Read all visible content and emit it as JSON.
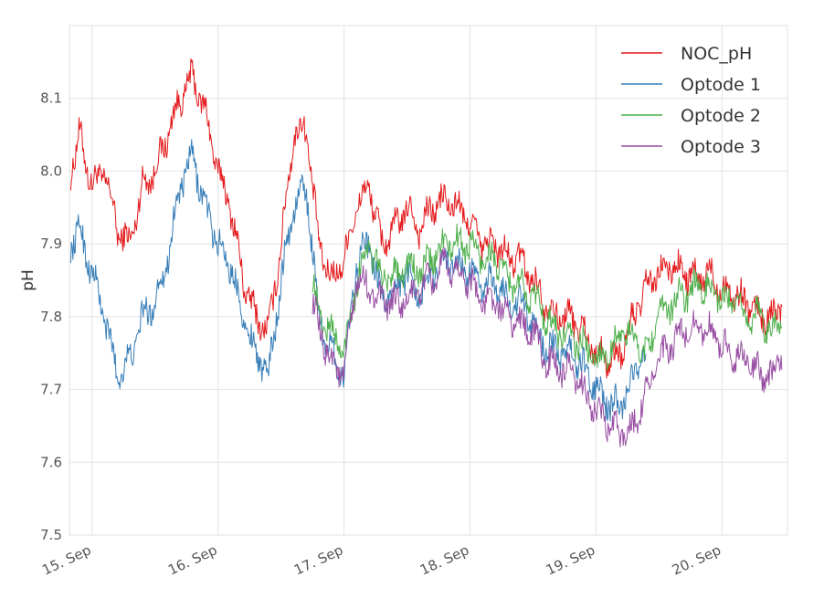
{
  "chart_data": {
    "type": "line",
    "title": "",
    "xlabel": "",
    "ylabel": "pH",
    "x_unit": "day of September",
    "xlim": [
      14.82,
      20.52
    ],
    "ylim": [
      7.5,
      8.2
    ],
    "grid": true,
    "legend_position": "top-right",
    "x_ticks": [
      {
        "value": 15,
        "label": "15. Sep"
      },
      {
        "value": 16,
        "label": "16. Sep"
      },
      {
        "value": 17,
        "label": "17. Sep"
      },
      {
        "value": 18,
        "label": "18. Sep"
      },
      {
        "value": 19,
        "label": "19. Sep"
      },
      {
        "value": 20,
        "label": "20. Sep"
      }
    ],
    "y_ticks": [
      {
        "value": 7.5,
        "label": "7.5"
      },
      {
        "value": 7.6,
        "label": "7.6"
      },
      {
        "value": 7.7,
        "label": "7.7"
      },
      {
        "value": 7.8,
        "label": "7.8"
      },
      {
        "value": 7.9,
        "label": "7.9"
      },
      {
        "value": 8.0,
        "label": "8.0"
      },
      {
        "value": 8.1,
        "label": "8.1"
      }
    ],
    "series": [
      {
        "name": "NOC_pH",
        "color": "#e41a1c",
        "x": [
          14.83,
          14.9,
          15.0,
          15.1,
          15.2,
          15.3,
          15.4,
          15.5,
          15.6,
          15.7,
          15.8,
          15.9,
          16.0,
          16.1,
          16.2,
          16.3,
          16.4,
          16.5,
          16.6,
          16.7,
          16.8,
          16.9,
          17.0,
          17.1,
          17.2,
          17.3,
          17.4,
          17.5,
          17.6,
          17.7,
          17.8,
          17.9,
          18.0,
          18.1,
          18.2,
          18.3,
          18.4,
          18.5,
          18.6,
          18.7,
          18.8,
          18.9,
          19.0,
          19.1,
          19.2,
          19.3,
          19.4,
          19.5,
          19.6,
          19.7,
          19.8,
          19.9,
          20.0,
          20.1,
          20.2,
          20.3,
          20.4,
          20.48
        ],
        "y": [
          8.0,
          8.05,
          7.98,
          8.0,
          7.92,
          7.9,
          7.98,
          8.0,
          8.05,
          8.1,
          8.13,
          8.08,
          8.0,
          7.95,
          7.85,
          7.8,
          7.78,
          7.9,
          8.05,
          8.06,
          7.9,
          7.85,
          7.88,
          7.95,
          7.98,
          7.9,
          7.92,
          7.95,
          7.92,
          7.95,
          7.96,
          7.95,
          7.93,
          7.9,
          7.9,
          7.88,
          7.88,
          7.85,
          7.82,
          7.8,
          7.8,
          7.78,
          7.75,
          7.74,
          7.75,
          7.8,
          7.84,
          7.86,
          7.87,
          7.86,
          7.85,
          7.86,
          7.84,
          7.83,
          7.82,
          7.8,
          7.8,
          7.82
        ]
      },
      {
        "name": "Optode 1",
        "color": "#377eb8",
        "x": [
          14.83,
          14.9,
          15.0,
          15.1,
          15.2,
          15.3,
          15.4,
          15.5,
          15.6,
          15.7,
          15.8,
          15.9,
          16.0,
          16.1,
          16.2,
          16.3,
          16.4,
          16.5,
          16.6,
          16.7,
          16.8,
          16.9,
          17.0,
          17.1,
          17.2,
          17.3,
          17.4,
          17.5,
          17.6,
          17.7,
          17.8,
          17.9,
          18.0,
          18.1,
          18.2,
          18.3,
          18.4,
          18.5,
          18.6,
          18.7,
          18.8,
          18.9,
          19.0,
          19.1,
          19.2,
          19.3,
          19.4
        ],
        "y": [
          7.9,
          7.92,
          7.86,
          7.8,
          7.72,
          7.74,
          7.8,
          7.82,
          7.88,
          7.98,
          8.02,
          7.95,
          7.9,
          7.87,
          7.8,
          7.75,
          7.72,
          7.85,
          7.95,
          7.98,
          7.8,
          7.75,
          7.72,
          7.88,
          7.9,
          7.82,
          7.84,
          7.86,
          7.83,
          7.86,
          7.88,
          7.87,
          7.86,
          7.84,
          7.85,
          7.82,
          7.82,
          7.79,
          7.76,
          7.75,
          7.75,
          7.73,
          7.7,
          7.68,
          7.68,
          7.72,
          7.75
        ]
      },
      {
        "name": "Optode 2",
        "color": "#4daf4a",
        "x": [
          16.75,
          16.8,
          16.9,
          17.0,
          17.1,
          17.2,
          17.3,
          17.4,
          17.5,
          17.6,
          17.7,
          17.8,
          17.9,
          18.0,
          18.1,
          18.2,
          18.3,
          18.4,
          18.5,
          18.6,
          18.7,
          18.8,
          18.9,
          19.0,
          19.1,
          19.2,
          19.3,
          19.4,
          19.5,
          19.6,
          19.7,
          19.8,
          19.9,
          20.0,
          20.1,
          20.2,
          20.3,
          20.4,
          20.48
        ],
        "y": [
          7.85,
          7.8,
          7.78,
          7.75,
          7.85,
          7.9,
          7.85,
          7.86,
          7.87,
          7.86,
          7.88,
          7.9,
          7.9,
          7.9,
          7.88,
          7.88,
          7.85,
          7.84,
          7.83,
          7.8,
          7.78,
          7.77,
          7.76,
          7.74,
          7.75,
          7.78,
          7.77,
          7.75,
          7.8,
          7.82,
          7.83,
          7.84,
          7.84,
          7.82,
          7.82,
          7.8,
          7.8,
          7.78,
          7.8
        ]
      },
      {
        "name": "Optode 3",
        "color": "#984ea3",
        "x": [
          16.75,
          16.8,
          16.9,
          17.0,
          17.1,
          17.2,
          17.3,
          17.4,
          17.5,
          17.6,
          17.7,
          17.8,
          17.9,
          18.0,
          18.1,
          18.2,
          18.3,
          18.4,
          18.5,
          18.6,
          18.7,
          18.8,
          18.9,
          19.0,
          19.1,
          19.2,
          19.3,
          19.4,
          19.5,
          19.6,
          19.7,
          19.8,
          19.9,
          20.0,
          20.1,
          20.2,
          20.3,
          20.4,
          20.48
        ],
        "y": [
          7.82,
          7.78,
          7.74,
          7.72,
          7.85,
          7.84,
          7.82,
          7.82,
          7.82,
          7.84,
          7.85,
          7.87,
          7.86,
          7.85,
          7.82,
          7.82,
          7.8,
          7.79,
          7.78,
          7.74,
          7.73,
          7.72,
          7.7,
          7.67,
          7.65,
          7.64,
          7.65,
          7.7,
          7.74,
          7.76,
          7.78,
          7.79,
          7.78,
          7.76,
          7.75,
          7.74,
          7.72,
          7.72,
          7.75
        ]
      }
    ]
  }
}
